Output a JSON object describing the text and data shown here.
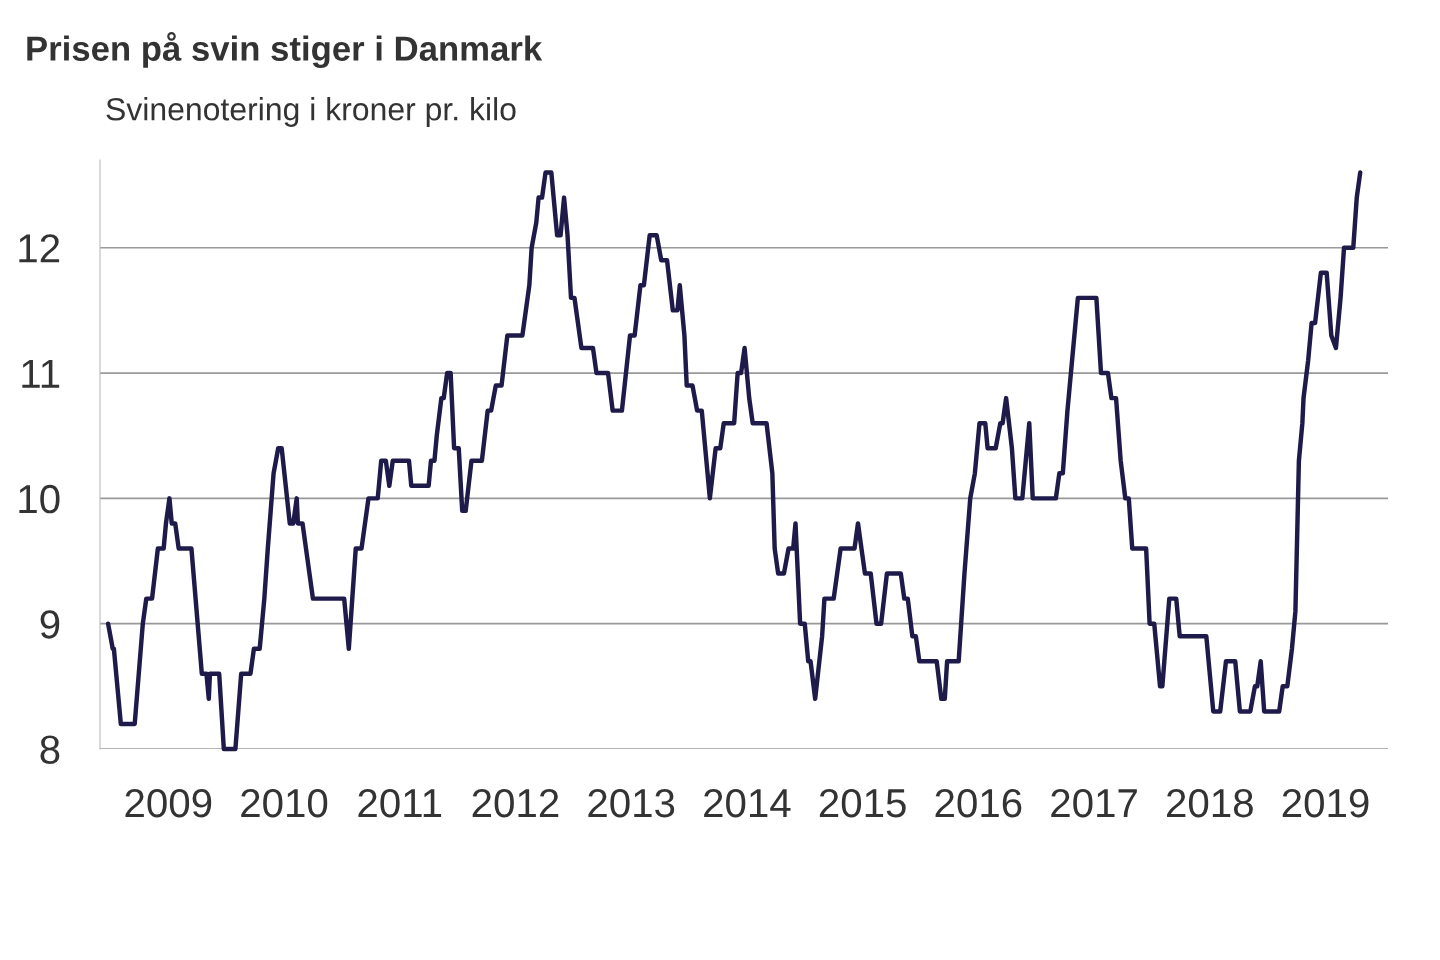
{
  "chart_data": {
    "type": "line",
    "title": "Prisen på svin stiger i Danmark",
    "subtitle": "Svinenotering i kroner pr. kilo",
    "x": [
      2008.98,
      2009.02,
      2009.03,
      2009.07,
      2009.09,
      2009.21,
      2009.28,
      2009.31,
      2009.36,
      2009.41,
      2009.46,
      2009.48,
      2009.51,
      2009.53,
      2009.56,
      2009.59,
      2009.7,
      2009.79,
      2009.83,
      2009.85,
      2009.86,
      2009.94,
      2009.98,
      2010.08,
      2010.13,
      2010.21,
      2010.24,
      2010.29,
      2010.33,
      2010.36,
      2010.41,
      2010.45,
      2010.48,
      2010.55,
      2010.58,
      2010.61,
      2010.62,
      2010.66,
      2010.69,
      2010.75,
      2011.02,
      2011.04,
      2011.06,
      2011.12,
      2011.17,
      2011.23,
      2011.31,
      2011.34,
      2011.38,
      2011.41,
      2011.44,
      2011.58,
      2011.6,
      2011.75,
      2011.77,
      2011.8,
      2011.82,
      2011.86,
      2011.88,
      2011.91,
      2011.94,
      2011.97,
      2012.01,
      2012.04,
      2012.07,
      2012.12,
      2012.21,
      2012.26,
      2012.29,
      2012.33,
      2012.38,
      2012.43,
      2012.56,
      2012.59,
      2012.62,
      2012.64,
      2012.68,
      2012.7,
      2012.73,
      2012.76,
      2012.81,
      2012.83,
      2012.86,
      2012.89,
      2012.92,
      2012.95,
      2012.98,
      2013.01,
      2013.04,
      2013.07,
      2013.17,
      2013.2,
      2013.3,
      2013.34,
      2013.42,
      2013.49,
      2013.53,
      2013.58,
      2013.61,
      2013.66,
      2013.72,
      2013.76,
      2013.81,
      2013.86,
      2013.9,
      2013.92,
      2013.96,
      2013.98,
      2014.03,
      2014.07,
      2014.11,
      2014.18,
      2014.23,
      2014.27,
      2014.3,
      2014.39,
      2014.42,
      2014.45,
      2014.48,
      2014.52,
      2014.55,
      2014.67,
      2014.72,
      2014.74,
      2014.77,
      2014.82,
      2014.86,
      2014.9,
      2014.92,
      2014.96,
      2015.0,
      2015.03,
      2015.05,
      2015.09,
      2015.15,
      2015.17,
      2015.25,
      2015.31,
      2015.43,
      2015.46,
      2015.49,
      2015.52,
      2015.57,
      2015.62,
      2015.66,
      2015.71,
      2015.83,
      2015.86,
      2015.89,
      2015.93,
      2015.96,
      2015.99,
      2016.14,
      2016.18,
      2016.21,
      2016.23,
      2016.33,
      2016.38,
      2016.43,
      2016.47,
      2016.51,
      2016.56,
      2016.58,
      2016.65,
      2016.69,
      2016.71,
      2016.74,
      2016.79,
      2016.82,
      2016.88,
      2016.91,
      2016.94,
      2016.97,
      2017.17,
      2017.2,
      2017.23,
      2017.27,
      2017.3,
      2017.36,
      2017.52,
      2017.56,
      2017.62,
      2017.65,
      2017.69,
      2017.73,
      2017.77,
      2017.8,
      2017.83,
      2017.95,
      2017.98,
      2018.02,
      2018.07,
      2018.09,
      2018.15,
      2018.21,
      2018.24,
      2018.47,
      2018.51,
      2018.53,
      2018.59,
      2018.64,
      2018.72,
      2018.76,
      2018.85,
      2018.89,
      2018.91,
      2018.94,
      2018.97,
      2019.1,
      2019.13,
      2019.17,
      2019.21,
      2019.24,
      2019.27,
      2019.3,
      2019.31,
      2019.35,
      2019.38,
      2019.41,
      2019.46,
      2019.51,
      2019.55,
      2019.59,
      2019.63,
      2019.66,
      2019.74,
      2019.77,
      2019.8
    ],
    "series": [
      {
        "color": "#1e1b4b",
        "values": [
          9.0,
          8.8,
          8.8,
          8.4,
          8.2,
          8.2,
          9.0,
          9.2,
          9.2,
          9.6,
          9.6,
          9.8,
          10.0,
          9.8,
          9.8,
          9.6,
          9.6,
          8.6,
          8.6,
          8.4,
          8.6,
          8.6,
          8.0,
          8.0,
          8.6,
          8.6,
          8.8,
          8.8,
          9.2,
          9.6,
          10.2,
          10.4,
          10.4,
          9.8,
          9.8,
          10.0,
          9.8,
          9.8,
          9.6,
          9.2,
          9.2,
          9.0,
          8.8,
          9.6,
          9.6,
          10.0,
          10.0,
          10.3,
          10.3,
          10.1,
          10.3,
          10.3,
          10.1,
          10.1,
          10.3,
          10.3,
          10.5,
          10.8,
          10.8,
          11.0,
          11.0,
          10.4,
          10.4,
          9.9,
          9.9,
          10.3,
          10.3,
          10.7,
          10.7,
          10.9,
          10.9,
          11.3,
          11.3,
          11.5,
          11.7,
          12.0,
          12.2,
          12.4,
          12.4,
          12.6,
          12.6,
          12.4,
          12.1,
          12.1,
          12.4,
          12.1,
          11.6,
          11.6,
          11.4,
          11.2,
          11.2,
          11.0,
          11.0,
          10.7,
          10.7,
          11.3,
          11.3,
          11.7,
          11.7,
          12.1,
          12.1,
          11.9,
          11.9,
          11.5,
          11.5,
          11.7,
          11.3,
          10.9,
          10.9,
          10.7,
          10.7,
          10.0,
          10.4,
          10.4,
          10.6,
          10.6,
          11.0,
          11.0,
          11.2,
          10.8,
          10.6,
          10.6,
          10.2,
          9.6,
          9.4,
          9.4,
          9.6,
          9.6,
          9.8,
          9.0,
          9.0,
          8.7,
          8.7,
          8.4,
          8.9,
          9.2,
          9.2,
          9.6,
          9.6,
          9.8,
          9.6,
          9.4,
          9.4,
          9.0,
          9.0,
          9.4,
          9.4,
          9.2,
          9.2,
          8.9,
          8.9,
          8.7,
          8.7,
          8.4,
          8.4,
          8.7,
          8.7,
          9.4,
          10.0,
          10.2,
          10.6,
          10.6,
          10.4,
          10.4,
          10.6,
          10.6,
          10.8,
          10.4,
          10.0,
          10.0,
          10.3,
          10.6,
          10.0,
          10.0,
          10.2,
          10.2,
          10.7,
          11.0,
          11.6,
          11.6,
          11.0,
          11.0,
          10.8,
          10.8,
          10.3,
          10.0,
          10.0,
          9.6,
          9.6,
          9.0,
          9.0,
          8.5,
          8.5,
          9.2,
          9.2,
          8.9,
          8.9,
          8.5,
          8.3,
          8.3,
          8.7,
          8.7,
          8.3,
          8.3,
          8.5,
          8.5,
          8.7,
          8.3,
          8.3,
          8.5,
          8.5,
          8.8,
          9.1,
          10.3,
          10.6,
          10.8,
          11.1,
          11.4,
          11.4,
          11.8,
          11.8,
          11.3,
          11.2,
          11.6,
          12.0,
          12.0,
          12.4,
          12.6
        ]
      }
    ],
    "xlim": [
      2008.91,
      2020.04
    ],
    "xticks": [
      {
        "value": 2009.5,
        "label": "2009"
      },
      {
        "value": 2010.5,
        "label": "2010"
      },
      {
        "value": 2011.5,
        "label": "2011"
      },
      {
        "value": 2012.5,
        "label": "2012"
      },
      {
        "value": 2013.5,
        "label": "2013"
      },
      {
        "value": 2014.5,
        "label": "2014"
      },
      {
        "value": 2015.5,
        "label": "2015"
      },
      {
        "value": 2016.5,
        "label": "2016"
      },
      {
        "value": 2017.5,
        "label": "2017"
      },
      {
        "value": 2018.5,
        "label": "2018"
      },
      {
        "value": 2019.5,
        "label": "2019"
      }
    ],
    "ylim": [
      8,
      12.7
    ],
    "yticks": [
      8,
      9,
      10,
      11,
      12
    ],
    "grid": "y",
    "legend": false,
    "marker": "none",
    "line_style": "solid"
  }
}
